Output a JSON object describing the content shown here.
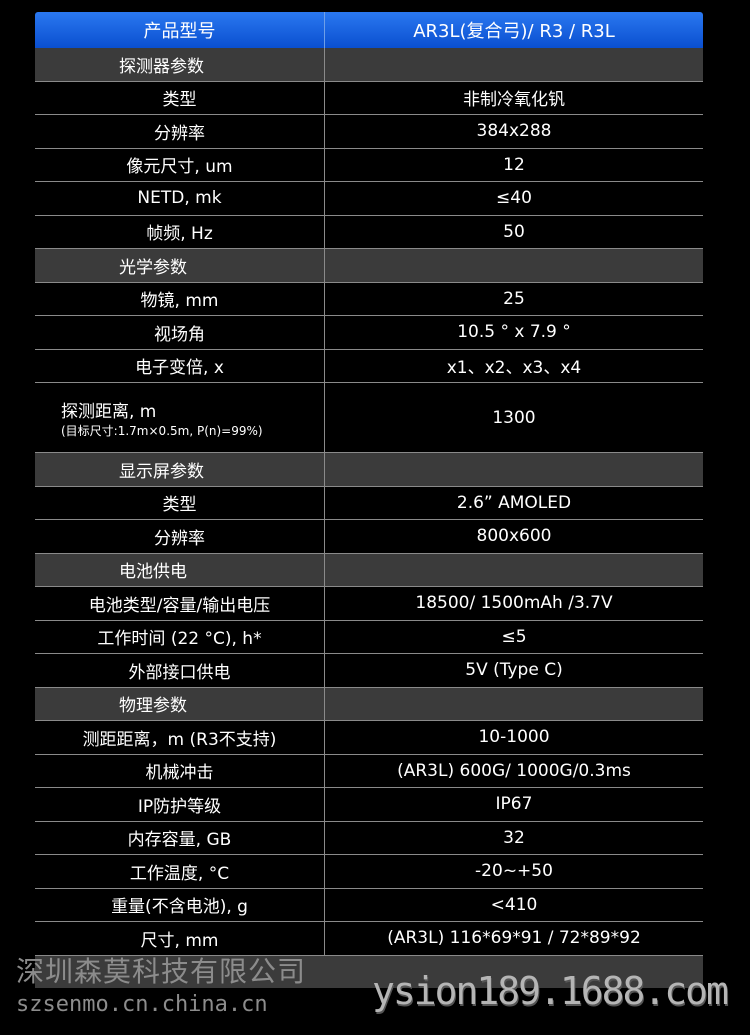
{
  "header": {
    "label": "产品型号",
    "value": "AR3L(复合弓)/ R3 / R3L"
  },
  "rows": [
    {
      "type": "section",
      "label": "探测器参数"
    },
    {
      "label": "类型",
      "value": "非制冷氧化钒"
    },
    {
      "label": "分辨率",
      "value": "384x288"
    },
    {
      "label": "像元尺寸, um",
      "value": "12"
    },
    {
      "label": "NETD, mk",
      "value": "≤40"
    },
    {
      "label": "帧频, Hz",
      "value": "50"
    },
    {
      "type": "section",
      "label": "光学参数"
    },
    {
      "label": "物镜, mm",
      "value": "25"
    },
    {
      "label": "视场角",
      "value": "10.5 ° x 7.9 °"
    },
    {
      "label": "电子变倍, x",
      "value": "x1、x2、x3、x4"
    },
    {
      "type": "double",
      "label": "探测距离, m",
      "note": "(目标尺寸:1.7m×0.5m, P(n)=99%)",
      "value": "1300"
    },
    {
      "type": "section",
      "label": "显示屏参数"
    },
    {
      "label": "类型",
      "value": "2.6” AMOLED"
    },
    {
      "label": "分辨率",
      "value": "800x600"
    },
    {
      "type": "section",
      "label": "电池供电"
    },
    {
      "label": "电池类型/容量/输出电压",
      "value": "18500/ 1500mAh /3.7V"
    },
    {
      "label": "工作时间 (22 °C), h*",
      "value": "≤5"
    },
    {
      "label": "外部接口供电",
      "value": "5V (Type C)"
    },
    {
      "type": "section",
      "label": "物理参数"
    },
    {
      "label": "测距距离，m (R3不支持)",
      "value": "10-1000"
    },
    {
      "label": "机械冲击",
      "value": "(AR3L) 600G/ 1000G/0.3ms"
    },
    {
      "label": "IP防护等级",
      "value": "IP67"
    },
    {
      "label": "内存容量, GB",
      "value": "32"
    },
    {
      "label": "工作温度, °C",
      "value": "-20~+50"
    },
    {
      "label": "重量(不含电池), g",
      "value": "<410"
    },
    {
      "label": "尺寸, mm",
      "value": "(AR3L) 116*69*91 / 72*89*92"
    }
  ],
  "watermarks": {
    "company": "深圳森莫科技有限公司",
    "site": "szsenmo.cn.china.cn",
    "shop": "ysion189.1688.com"
  },
  "colors": {
    "header": "#1a62e0",
    "section": "#3b3b3b",
    "background": "#000000"
  }
}
